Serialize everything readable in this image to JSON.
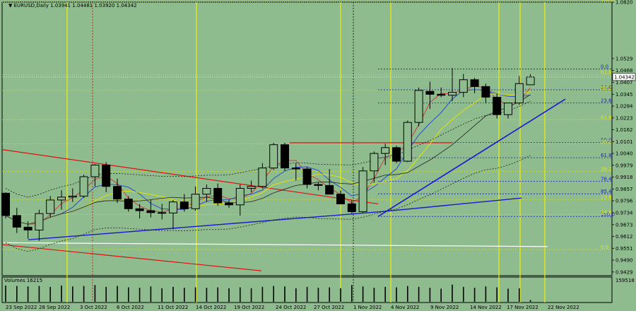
{
  "chart_data": {
    "type": "candlestick",
    "title": "EURUSD,Daily",
    "ohlc_header": [
      "1.03941",
      "1.04481",
      "1.03920",
      "1.04342"
    ],
    "current_price_label": "1.04342",
    "ylim": [
      0.941,
      1.082
    ],
    "y_ticks": [
      "1.0820",
      "1.0529",
      "1.0468",
      "1.0407",
      "1.0345",
      "1.0284",
      "1.0223",
      "1.0162",
      "1.0101",
      "1.0040",
      "0.9979",
      "0.9918",
      "0.9857",
      "0.9796",
      "0.9734",
      "0.9673",
      "0.9612",
      "0.9551",
      "0.9490",
      "0.9429"
    ],
    "y_tick_values": [
      1.082,
      1.0529,
      1.0468,
      1.0407,
      1.0345,
      1.0284,
      1.0223,
      1.0162,
      1.0101,
      1.004,
      0.9979,
      0.9918,
      0.9857,
      0.9796,
      0.9734,
      0.9673,
      0.9612,
      0.9551,
      0.949,
      0.9429
    ],
    "x_labels": [
      "23 Sep 2022",
      "28 Sep 2022",
      "3 Oct 2022",
      "6 Oct 2022",
      "11 Oct 2022",
      "14 Oct 2022",
      "19 Oct 2022",
      "24 Oct 2022",
      "27 Oct 2022",
      "1 Nov 2022",
      "4 Nov 2022",
      "9 Nov 2022",
      "14 Nov 2022",
      "17 Nov 2022",
      "22 Nov 2022"
    ],
    "candles": [
      [
        0.9835,
        0.984,
        0.9705,
        0.972
      ],
      [
        0.972,
        0.976,
        0.963,
        0.966
      ],
      [
        0.966,
        0.969,
        0.96,
        0.9645
      ],
      [
        0.9645,
        0.975,
        0.959,
        0.973
      ],
      [
        0.973,
        0.982,
        0.971,
        0.98
      ],
      [
        0.98,
        0.985,
        0.975,
        0.9815
      ],
      [
        0.9815,
        0.986,
        0.979,
        0.982
      ],
      [
        0.982,
        0.993,
        0.981,
        0.992
      ],
      [
        0.992,
        0.9985,
        0.987,
        0.998
      ],
      [
        0.998,
        0.9995,
        0.984,
        0.987
      ],
      [
        0.987,
        0.991,
        0.9785,
        0.9805
      ],
      [
        0.9805,
        0.982,
        0.974,
        0.9755
      ],
      [
        0.9755,
        0.978,
        0.9705,
        0.9745
      ],
      [
        0.9745,
        0.98,
        0.971,
        0.9735
      ],
      [
        0.9735,
        0.978,
        0.97,
        0.9733
      ],
      [
        0.9733,
        0.98,
        0.965,
        0.979
      ],
      [
        0.979,
        0.983,
        0.974,
        0.9755
      ],
      [
        0.9755,
        0.987,
        0.9745,
        0.983
      ],
      [
        0.983,
        0.988,
        0.979,
        0.986
      ],
      [
        0.986,
        0.9885,
        0.977,
        0.9785
      ],
      [
        0.9785,
        0.98,
        0.976,
        0.9775
      ],
      [
        0.9775,
        0.988,
        0.972,
        0.986
      ],
      [
        0.986,
        0.99,
        0.984,
        0.987
      ],
      [
        0.987,
        0.999,
        0.986,
        0.9965
      ],
      [
        0.9965,
        1.0095,
        0.9955,
        1.0085
      ],
      [
        1.0085,
        1.0095,
        0.995,
        0.9965
      ],
      [
        0.9965,
        0.999,
        0.99,
        0.996
      ],
      [
        0.996,
        0.997,
        0.986,
        0.988
      ],
      [
        0.988,
        0.989,
        0.985,
        0.9875
      ],
      [
        0.9875,
        0.996,
        0.9835,
        0.983
      ],
      [
        0.983,
        0.985,
        0.978,
        0.978
      ],
      [
        0.978,
        0.98,
        0.973,
        0.974
      ],
      [
        0.974,
        0.997,
        0.9735,
        0.995
      ],
      [
        0.995,
        1.005,
        0.989,
        1.004
      ],
      [
        1.004,
        1.009,
        0.998,
        1.007
      ],
      [
        1.007,
        1.008,
        0.999,
        1.0
      ],
      [
        1.0,
        1.021,
        0.9995,
        1.02
      ],
      [
        1.02,
        1.038,
        1.018,
        1.0365
      ],
      [
        1.036,
        1.041,
        1.027,
        1.0345
      ],
      [
        1.0345,
        1.038,
        1.033,
        1.034
      ],
      [
        1.034,
        1.048,
        1.031,
        1.0355
      ],
      [
        1.0355,
        1.045,
        1.033,
        1.042
      ],
      [
        1.042,
        1.043,
        1.035,
        1.0385
      ],
      [
        1.0385,
        1.04,
        1.03,
        1.033
      ],
      [
        1.033,
        1.035,
        1.022,
        1.024
      ],
      [
        1.024,
        1.03,
        1.022,
        1.03
      ],
      [
        1.03,
        1.044,
        1.029,
        1.04
      ],
      [
        1.0394,
        1.0448,
        1.0392,
        1.0434
      ]
    ],
    "fib_levels_blue": [
      {
        "label": "0.0",
        "value": 1.0475
      },
      {
        "label": "14.6",
        "value": 1.0368
      },
      {
        "label": "23.6",
        "value": 1.03
      },
      {
        "label": "50.0",
        "value": 1.0096
      },
      {
        "label": "61.8",
        "value": 1.0018
      },
      {
        "label": "76.4",
        "value": 0.9896
      },
      {
        "label": "85.4",
        "value": 0.9832
      },
      {
        "label": "100.0",
        "value": 0.9715
      }
    ],
    "fib_levels_yellow": [
      {
        "label": "100.0",
        "value": 1.082
      },
      {
        "label": "61.8",
        "value": 1.0446
      },
      {
        "label": "38.2",
        "value": 1.0365
      },
      {
        "label": "61.8",
        "value": 1.0214
      },
      {
        "label": "38.2",
        "value": 1.009
      },
      {
        "label": "38.2",
        "value": 0.9947
      },
      {
        "label": "23.6",
        "value": 0.9802
      },
      {
        "label": "14.6",
        "value": 0.9725
      },
      {
        "label": "0.0",
        "value": 0.9545
      }
    ],
    "volume_label": "Volumes 16215",
    "volume_max_label": "159518",
    "volumes": [
      0.72,
      0.7,
      0.68,
      0.7,
      0.66,
      0.72,
      0.68,
      0.7,
      0.74,
      0.66,
      0.7,
      0.64,
      0.62,
      0.68,
      0.6,
      0.66,
      0.62,
      0.64,
      0.62,
      0.64,
      0.6,
      0.64,
      0.6,
      0.66,
      0.7,
      0.68,
      0.6,
      0.66,
      0.62,
      0.64,
      0.6,
      0.74,
      0.68,
      0.62,
      0.66,
      0.64,
      0.7,
      0.66,
      0.62,
      0.58,
      0.76,
      0.66,
      0.62,
      0.68,
      0.64,
      0.58,
      0.6,
      0.08
    ]
  }
}
